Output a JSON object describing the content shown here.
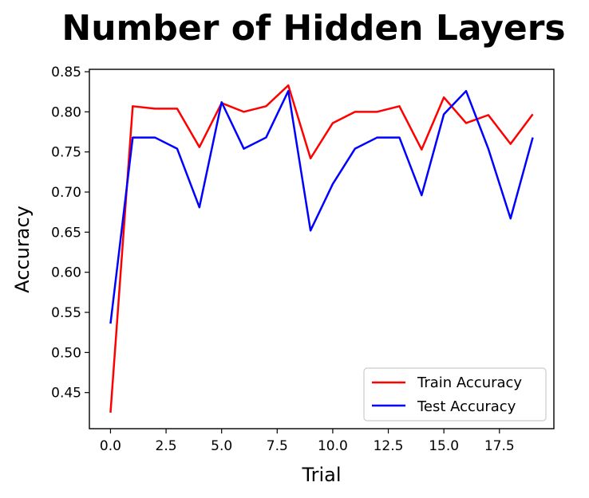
{
  "chart_data": {
    "type": "line",
    "title": "Number of Hidden Layers",
    "xlabel": "Trial",
    "ylabel": "Accuracy",
    "x": [
      0,
      1,
      2,
      3,
      4,
      5,
      6,
      7,
      8,
      9,
      10,
      11,
      12,
      13,
      14,
      15,
      16,
      17,
      18,
      19
    ],
    "xlim": [
      -0.95,
      19.95
    ],
    "ylim": [
      0.405,
      0.853
    ],
    "xticks": [
      0.0,
      2.5,
      5.0,
      7.5,
      10.0,
      12.5,
      15.0,
      17.5
    ],
    "xtick_labels": [
      "0.0",
      "2.5",
      "5.0",
      "7.5",
      "10.0",
      "12.5",
      "15.0",
      "17.5"
    ],
    "yticks": [
      0.45,
      0.5,
      0.55,
      0.6,
      0.65,
      0.7,
      0.75,
      0.8,
      0.85
    ],
    "ytick_labels": [
      "0.45",
      "0.50",
      "0.55",
      "0.60",
      "0.65",
      "0.70",
      "0.75",
      "0.80",
      "0.85"
    ],
    "grid": false,
    "legend_position": "lower-right",
    "series": [
      {
        "name": "Train Accuracy",
        "color": "#ff0000",
        "values": [
          0.425,
          0.807,
          0.804,
          0.804,
          0.756,
          0.811,
          0.8,
          0.807,
          0.833,
          0.742,
          0.786,
          0.8,
          0.8,
          0.807,
          0.753,
          0.818,
          0.786,
          0.796,
          0.76,
          0.797
        ]
      },
      {
        "name": "Test Accuracy",
        "color": "#0000ff",
        "values": [
          0.536,
          0.768,
          0.768,
          0.754,
          0.681,
          0.812,
          0.754,
          0.768,
          0.826,
          0.652,
          0.71,
          0.754,
          0.768,
          0.768,
          0.696,
          0.797,
          0.826,
          0.754,
          0.667,
          0.768
        ]
      }
    ]
  }
}
